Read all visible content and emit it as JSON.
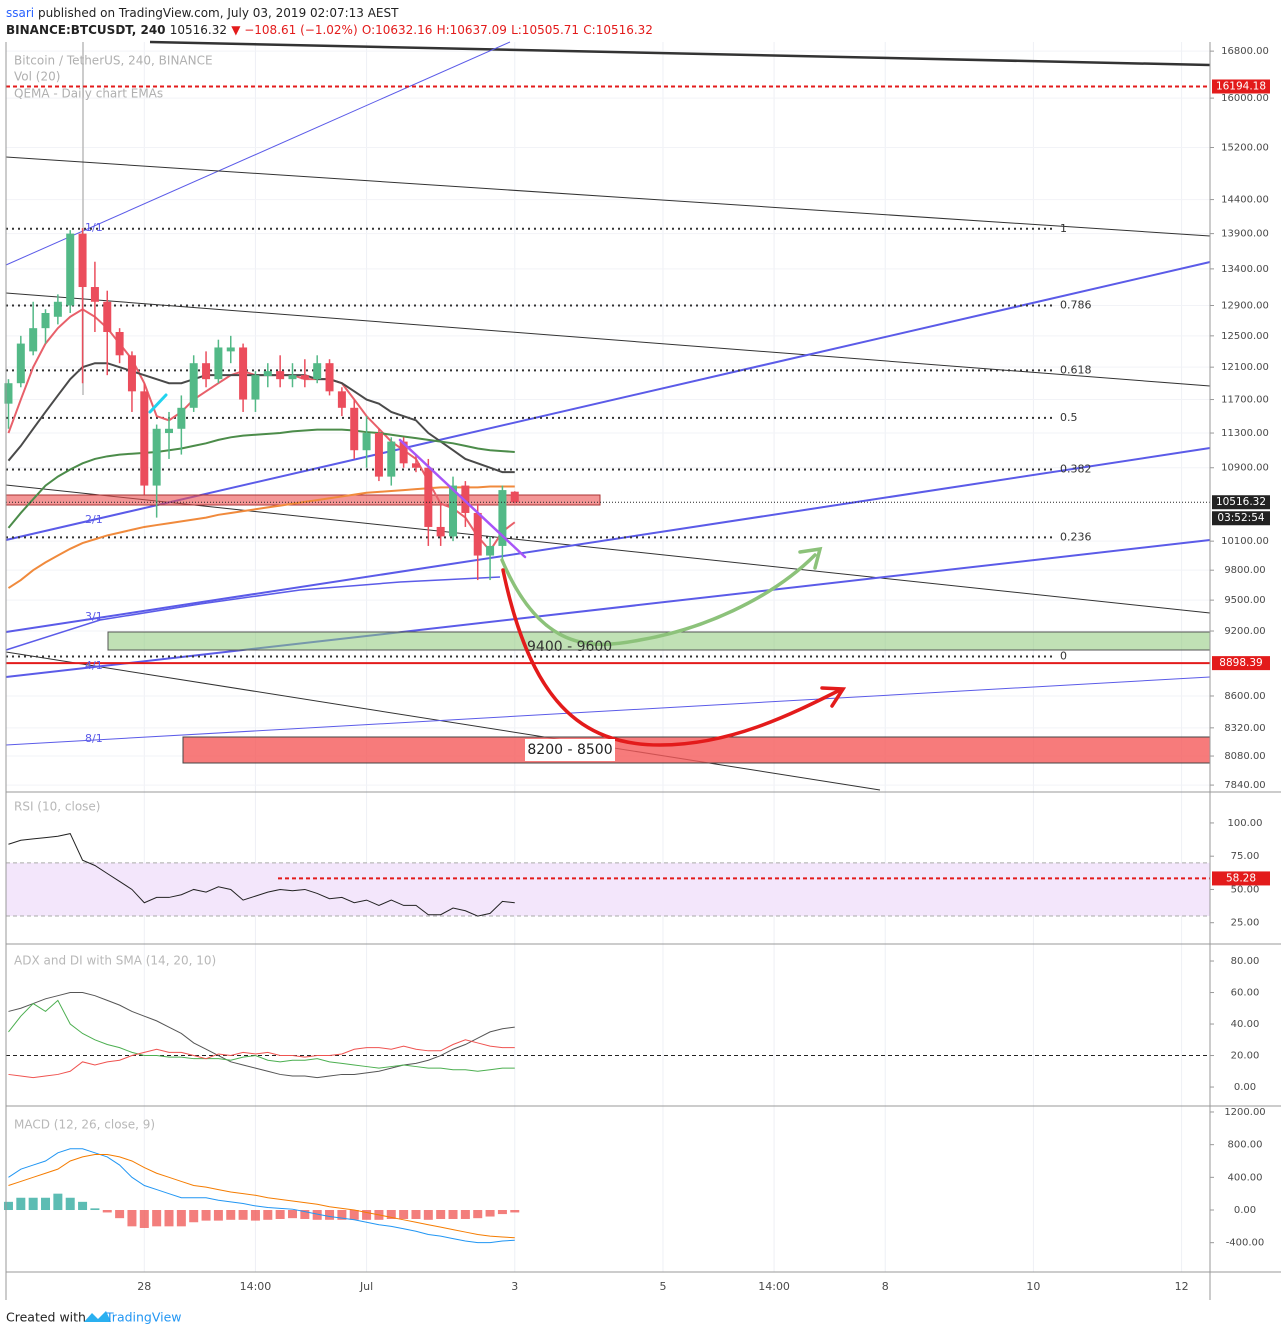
{
  "header": {
    "author": "ssari",
    "published": "published on TradingView.com, July 03, 2019 02:07:13 AEST",
    "symbol": "BINANCE:BTCUSDT, 240",
    "price": "10516.32",
    "change": "▼ −108.61 (−1.02%)",
    "ohlc": [
      "O:10632.16",
      "H:10637.09",
      "L:10505.71",
      "C:10516.32"
    ]
  },
  "legend": [
    "Bitcoin / TetherUS, 240, BINANCE",
    "Vol (20)",
    "QEMA - Daily chart EMAs"
  ],
  "chart_data": [
    {
      "type": "candlestick",
      "log_scale": true,
      "grid": true,
      "ylim": [
        7800,
        16960
      ],
      "xlim": [
        -0.2,
        97.3
      ],
      "yticks": [
        {
          "value": 16800,
          "label": "16800.00"
        },
        {
          "value": 16000,
          "label": "16000.00"
        },
        {
          "value": 15200,
          "label": "15200.00"
        },
        {
          "value": 14400,
          "label": "14400.00"
        },
        {
          "value": 13900,
          "label": "13900.00"
        },
        {
          "value": 13400,
          "label": "13400.00"
        },
        {
          "value": 12900,
          "label": "12900.00"
        },
        {
          "value": 12500,
          "label": "12500.00"
        },
        {
          "value": 12100,
          "label": "12100.00"
        },
        {
          "value": 11700,
          "label": "11700.00"
        },
        {
          "value": 11300,
          "label": "11300.00"
        },
        {
          "value": 10900,
          "label": "10900.00"
        },
        {
          "value": 10100,
          "label": "10100.00"
        },
        {
          "value": 9800,
          "label": "9800.00"
        },
        {
          "value": 9500,
          "label": "9500.00"
        },
        {
          "value": 9200,
          "label": "9200.00"
        },
        {
          "value": 8600,
          "label": "8600.00"
        },
        {
          "value": 8320,
          "label": "8320.00"
        },
        {
          "value": 8080,
          "label": "8080.00"
        },
        {
          "value": 7840,
          "label": "7840.00"
        }
      ],
      "xticks": [
        {
          "value": 11,
          "label": "28"
        },
        {
          "value": 20,
          "label": "14:00"
        },
        {
          "value": 29,
          "label": "Jul"
        },
        {
          "value": 41,
          "label": "3"
        },
        {
          "value": 53,
          "label": "5"
        },
        {
          "value": 62,
          "label": "14:00"
        },
        {
          "value": 71,
          "label": "8"
        },
        {
          "value": 83,
          "label": "10"
        },
        {
          "value": 95,
          "label": "12"
        }
      ],
      "up_color": "#53b987",
      "down_color": "#eb4d5c",
      "open": [
        11650,
        11900,
        12300,
        12600,
        12750,
        12900,
        13900,
        13150,
        12950,
        12550,
        12250,
        11800,
        10700,
        11300,
        11350,
        11600,
        12150,
        11950,
        12300,
        12350,
        11700,
        11990,
        12050,
        11950,
        12000,
        11950,
        12150,
        11800,
        11600,
        11100,
        11300,
        10800,
        11200,
        10950,
        10900,
        10250,
        10150,
        10700,
        10400,
        9950,
        10050,
        10632.16
      ],
      "high": [
        11950,
        12500,
        12950,
        12850,
        13050,
        13950,
        13980,
        13500,
        13100,
        12600,
        12300,
        11900,
        11400,
        11550,
        11750,
        12250,
        12300,
        12450,
        12500,
        12400,
        12050,
        12150,
        12250,
        12150,
        12200,
        12250,
        12200,
        11850,
        11700,
        11500,
        11350,
        11250,
        11250,
        11050,
        11000,
        10500,
        10800,
        10750,
        10500,
        10150,
        10700,
        10637.09
      ],
      "low": [
        11350,
        11850,
        12250,
        12400,
        12650,
        12800,
        11900,
        12550,
        12000,
        12150,
        11550,
        10600,
        10350,
        11000,
        11050,
        11550,
        11850,
        11900,
        12150,
        11550,
        11550,
        11850,
        11850,
        11850,
        11850,
        11900,
        11750,
        11500,
        11000,
        10900,
        10750,
        10700,
        10900,
        10850,
        10050,
        10050,
        10100,
        10250,
        9700,
        9700,
        9900,
        10505.71
      ],
      "close": [
        11900,
        12400,
        12600,
        12800,
        12950,
        13900,
        13150,
        12950,
        12550,
        12250,
        11800,
        10700,
        11350,
        11350,
        11600,
        12150,
        11950,
        12350,
        12350,
        11700,
        12000,
        12050,
        11950,
        12000,
        11950,
        12150,
        11800,
        11600,
        11100,
        11300,
        10800,
        11200,
        10950,
        10900,
        10250,
        10150,
        10700,
        10400,
        9950,
        10050,
        10650,
        10516.32
      ],
      "overlays": [
        {
          "color": "#e8606a",
          "values": [
            11300,
            11700,
            12100,
            12400,
            12600,
            12750,
            12850,
            12750,
            12600,
            12400,
            12200,
            11900,
            11500,
            11450,
            11550,
            11700,
            11800,
            11900,
            12000,
            12050,
            12000,
            12000,
            12000,
            12000,
            11950,
            11950,
            11950,
            11900,
            11700,
            11500,
            11350,
            11200,
            11100,
            11000,
            10750,
            10500,
            10450,
            10350,
            10150,
            10000,
            10200,
            10300
          ]
        },
        {
          "color": "#4a4a4a",
          "values": [
            10980,
            11150,
            11350,
            11550,
            11750,
            11950,
            12100,
            12150,
            12150,
            12100,
            12050,
            12000,
            11950,
            11900,
            11900,
            11950,
            12000,
            12000,
            12000,
            12000,
            12000,
            12000,
            12000,
            12000,
            12000,
            11950,
            11950,
            11900,
            11800,
            11700,
            11650,
            11550,
            11500,
            11450,
            11300,
            11200,
            11100,
            11000,
            10950,
            10900,
            10850,
            10850
          ]
        },
        {
          "color": "#4c8c4a",
          "values": [
            10240,
            10400,
            10550,
            10700,
            10800,
            10880,
            10950,
            11000,
            11030,
            11050,
            11060,
            11070,
            11080,
            11100,
            11120,
            11150,
            11180,
            11220,
            11250,
            11270,
            11280,
            11290,
            11300,
            11320,
            11330,
            11340,
            11340,
            11340,
            11330,
            11310,
            11300,
            11280,
            11260,
            11240,
            11220,
            11200,
            11180,
            11150,
            11120,
            11100,
            11090,
            11080
          ]
        },
        {
          "color": "#f08a3c",
          "values": [
            9620,
            9700,
            9800,
            9880,
            9950,
            10020,
            10080,
            10120,
            10160,
            10190,
            10220,
            10250,
            10270,
            10290,
            10310,
            10330,
            10350,
            10380,
            10400,
            10420,
            10440,
            10460,
            10480,
            10500,
            10520,
            10540,
            10560,
            10580,
            10600,
            10620,
            10630,
            10640,
            10650,
            10660,
            10670,
            10680,
            10680,
            10680,
            10680,
            10690,
            10690,
            10690
          ]
        }
      ],
      "fib": {
        "levels": [
          1,
          0.786,
          0.618,
          0.5,
          0.382,
          0.236,
          0
        ],
        "prices": [
          13970,
          12900,
          12060,
          11480,
          10880,
          10140,
          8960
        ]
      },
      "price_lines": [
        {
          "value": 16194.18,
          "color": "#e31b1b",
          "dash": "4 3"
        },
        {
          "value": 10516.32,
          "color": "#222222",
          "dash": "1 2"
        },
        {
          "value": 8898.39,
          "color": "#e31b1b",
          "dash": "none"
        }
      ],
      "countdown": "03:52:54",
      "zones": [
        "9400 - 9600",
        "8200 - 8500"
      ],
      "gann": [
        "1/1",
        "2/1",
        "3/1",
        "4/1",
        "8/1"
      ]
    },
    {
      "type": "line",
      "title": "RSI (10, close)",
      "ylim": [
        12,
        121
      ],
      "yticks": [
        {
          "value": 100,
          "label": "100.00"
        },
        {
          "value": 75,
          "label": "75.00"
        },
        {
          "value": 50,
          "label": "50.00"
        },
        {
          "value": 25,
          "label": "25.00"
        }
      ],
      "band": [
        30,
        70
      ],
      "band_color": "#f3e6fb",
      "level_line": {
        "value": 58.28,
        "color": "#e31b1b"
      },
      "series": [
        {
          "color": "#222222",
          "values": [
            84,
            87,
            88,
            89,
            90,
            92,
            72,
            68,
            62,
            56,
            50,
            40,
            44,
            44,
            46,
            50,
            48,
            52,
            50,
            42,
            45,
            48,
            50,
            49,
            50,
            47,
            43,
            44,
            40,
            42,
            38,
            42,
            38,
            38,
            31,
            31,
            36,
            34,
            30,
            32,
            41,
            40
          ]
        }
      ]
    },
    {
      "type": "line",
      "title": "ADX and DI with SMA (14, 20, 10)",
      "ylim": [
        -11.4,
        88.9
      ],
      "yticks": [
        {
          "value": 80,
          "label": "80.00"
        },
        {
          "value": 60,
          "label": "60.00"
        },
        {
          "value": 40,
          "label": "40.00"
        },
        {
          "value": 20,
          "label": "20.00"
        },
        {
          "value": 0,
          "label": "0.00"
        }
      ],
      "level": 20,
      "series": [
        {
          "color": "#555555",
          "values": [
            48,
            50,
            53,
            56,
            58,
            60,
            60,
            58,
            55,
            52,
            48,
            45,
            42,
            38,
            34,
            28,
            24,
            20,
            16,
            14,
            12,
            10,
            8,
            7,
            7,
            6,
            7,
            8,
            8,
            9,
            10,
            12,
            14,
            15,
            17,
            20,
            24,
            27,
            31,
            35,
            37,
            38
          ]
        },
        {
          "color": "#4caf50",
          "values": [
            35,
            45,
            53,
            48,
            55,
            40,
            34,
            30,
            27,
            25,
            22,
            20,
            20,
            19,
            19,
            18,
            18,
            18,
            17,
            19,
            20,
            17,
            16,
            17,
            17,
            18,
            16,
            15,
            14,
            13,
            12,
            13,
            14,
            13,
            12,
            12,
            11,
            11,
            10,
            11,
            12,
            12
          ]
        },
        {
          "color": "#ef5350",
          "values": [
            8,
            7,
            6,
            7,
            8,
            10,
            16,
            14,
            16,
            17,
            20,
            22,
            24,
            22,
            22,
            20,
            18,
            21,
            20,
            22,
            21,
            22,
            20,
            20,
            19,
            20,
            20,
            21,
            24,
            25,
            25,
            24,
            26,
            24,
            23,
            23,
            27,
            30,
            28,
            26,
            25,
            25
          ]
        }
      ]
    },
    {
      "type": "line",
      "title": "MACD (12, 26, close, 9)",
      "ylim": [
        -759,
        1261
      ],
      "yticks": [
        {
          "value": 1200,
          "label": "1200.00"
        },
        {
          "value": 800,
          "label": "800.00"
        },
        {
          "value": 400,
          "label": "400.00"
        },
        {
          "value": 0,
          "label": "0.00"
        },
        {
          "value": -400,
          "label": "-400.00"
        }
      ],
      "histogram": {
        "pos_color": "#26a69a",
        "neg_color": "#ef5350",
        "values": [
          100,
          150,
          150,
          150,
          200,
          150,
          100,
          20,
          -30,
          -100,
          -200,
          -220,
          -200,
          -200,
          -200,
          -150,
          -130,
          -130,
          -120,
          -120,
          -130,
          -120,
          -110,
          -100,
          -110,
          -120,
          -120,
          -120,
          -120,
          -120,
          -120,
          -110,
          -110,
          -110,
          -120,
          -110,
          -110,
          -110,
          -100,
          -80,
          -50,
          -30
        ]
      },
      "series": [
        {
          "color": "#2196f3",
          "values": [
            400,
            500,
            550,
            600,
            700,
            750,
            750,
            700,
            650,
            550,
            400,
            300,
            250,
            200,
            150,
            150,
            150,
            120,
            100,
            80,
            50,
            30,
            20,
            10,
            -20,
            -50,
            -80,
            -100,
            -120,
            -150,
            -180,
            -200,
            -230,
            -260,
            -300,
            -320,
            -350,
            -380,
            -400,
            -400,
            -380,
            -370
          ]
        },
        {
          "color": "#f57c00",
          "values": [
            300,
            350,
            400,
            450,
            500,
            600,
            650,
            680,
            680,
            650,
            600,
            520,
            450,
            400,
            350,
            300,
            280,
            250,
            220,
            200,
            180,
            150,
            130,
            110,
            90,
            70,
            40,
            20,
            0,
            -30,
            -60,
            -90,
            -120,
            -150,
            -180,
            -210,
            -240,
            -270,
            -300,
            -320,
            -330,
            -340
          ]
        }
      ]
    }
  ],
  "footer": {
    "created": "Created with",
    "brand": "TradingView"
  }
}
